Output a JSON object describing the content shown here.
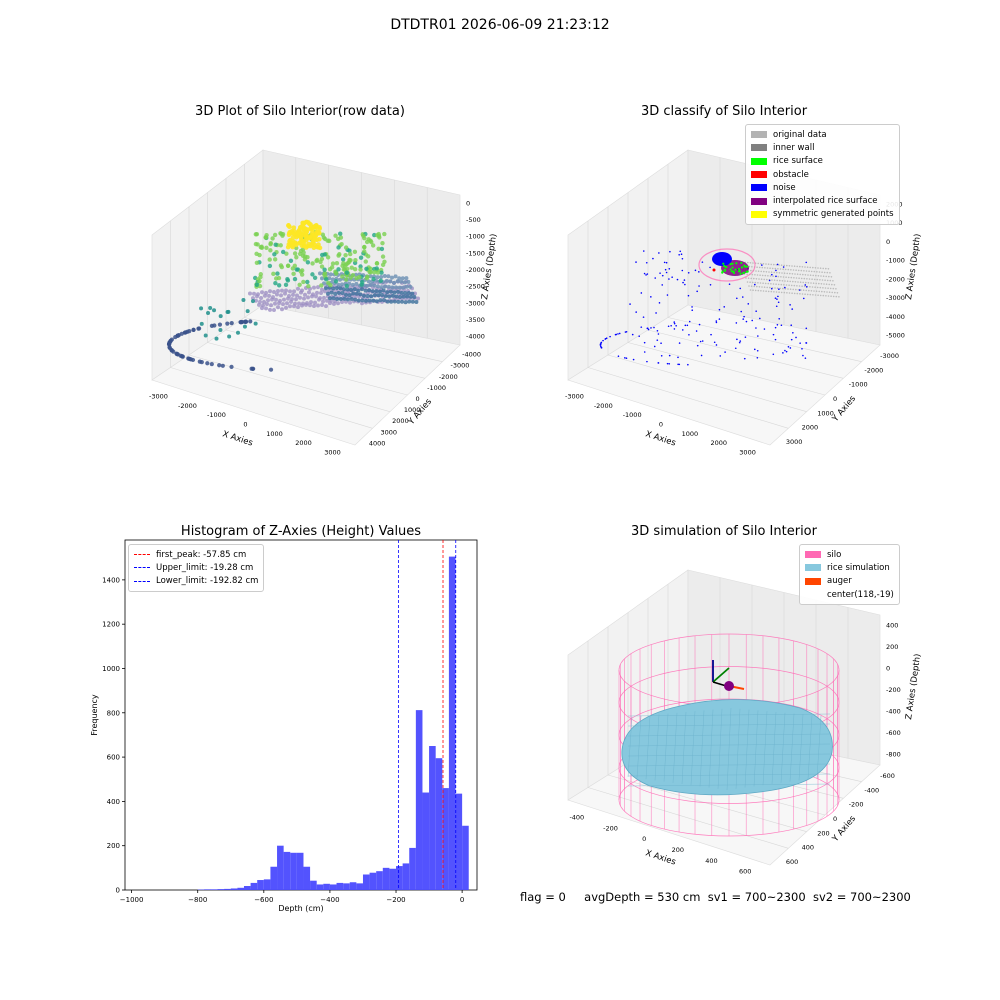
{
  "figure_title": "DTDTR01 2026-06-09 21:23:12",
  "footer": {
    "flag": "flag = 0",
    "avg_depth": "avgDepth = 530 cm",
    "sv1": "sv1 = 700~2300",
    "sv2": "sv2 = 700~2300"
  },
  "colors": {
    "hist_bar": "#4a4afe",
    "peak_line": "#ff0000",
    "limit_line": "#0000ff",
    "silo_wire": "#ff69b4",
    "rice": "#87c8de",
    "auger": "#ff4500"
  },
  "chart_data": [
    {
      "type": "scatter",
      "projection": "3d",
      "title": "3D Plot of Silo Interior(row data)",
      "xlabel": "X Axies",
      "ylabel": "Y Axies",
      "zlabel": "Z Axies (Depth)",
      "x_ticks": [
        "-3000",
        "-2000",
        "-1000",
        "0",
        "1000",
        "2000",
        "3000"
      ],
      "y_ticks": [
        "-4000",
        "-3000",
        "-2000",
        "-1000",
        "0",
        "1000",
        "2000",
        "3000",
        "4000"
      ],
      "z_ticks": [
        "0",
        "-500",
        "-1000",
        "-1500",
        "-2000",
        "-2500",
        "-3000",
        "-3500",
        "-4000"
      ],
      "colormap": "viridis"
    },
    {
      "type": "scatter",
      "projection": "3d",
      "title": "3D classify of Silo Interior",
      "xlabel": "X Axies",
      "ylabel": "Y Axies",
      "zlabel": "Z Axies (Depth)",
      "x_ticks": [
        "-3000",
        "-2000",
        "-1000",
        "0",
        "1000",
        "2000",
        "3000"
      ],
      "y_ticks": [
        "-3000",
        "-2000",
        "-1000",
        "0",
        "1000",
        "2000",
        "3000"
      ],
      "z_ticks": [
        "2000",
        "1000",
        "0",
        "-1000",
        "-2000",
        "-3000",
        "-4000",
        "-5000"
      ],
      "legend": [
        {
          "label": "original data",
          "color": "#b3b3b3"
        },
        {
          "label": "inner wall",
          "color": "#808080"
        },
        {
          "label": "rice surface",
          "color": "#00ff00"
        },
        {
          "label": "obstacle",
          "color": "#ff0000"
        },
        {
          "label": "noise",
          "color": "#0000ff"
        },
        {
          "label": "interpolated rice surface",
          "color": "#800080"
        },
        {
          "label": "symmetric generated points",
          "color": "#ffff00"
        }
      ]
    },
    {
      "type": "bar",
      "title": "Histogram of Z-Axies (Height) Values",
      "xlabel": "Depth (cm)",
      "ylabel": "Frequency",
      "xlim": [
        -1020,
        45
      ],
      "ylim": [
        0,
        1580
      ],
      "x_ticks": [
        -1000,
        -800,
        -600,
        -400,
        -200,
        0
      ],
      "y_ticks": [
        0,
        200,
        400,
        600,
        800,
        1000,
        1200,
        1400
      ],
      "bin_width": 20,
      "bins": [
        {
          "x": -800,
          "v": 2
        },
        {
          "x": -780,
          "v": 3
        },
        {
          "x": -760,
          "v": 3
        },
        {
          "x": -740,
          "v": 4
        },
        {
          "x": -720,
          "v": 5
        },
        {
          "x": -700,
          "v": 7
        },
        {
          "x": -680,
          "v": 10
        },
        {
          "x": -660,
          "v": 18
        },
        {
          "x": -640,
          "v": 32
        },
        {
          "x": -620,
          "v": 45
        },
        {
          "x": -600,
          "v": 48
        },
        {
          "x": -580,
          "v": 105
        },
        {
          "x": -560,
          "v": 200
        },
        {
          "x": -540,
          "v": 172
        },
        {
          "x": -520,
          "v": 168
        },
        {
          "x": -500,
          "v": 168
        },
        {
          "x": -480,
          "v": 105
        },
        {
          "x": -460,
          "v": 42
        },
        {
          "x": -440,
          "v": 25
        },
        {
          "x": -420,
          "v": 28
        },
        {
          "x": -400,
          "v": 25
        },
        {
          "x": -380,
          "v": 32
        },
        {
          "x": -360,
          "v": 30
        },
        {
          "x": -340,
          "v": 35
        },
        {
          "x": -320,
          "v": 30
        },
        {
          "x": -300,
          "v": 70
        },
        {
          "x": -280,
          "v": 78
        },
        {
          "x": -260,
          "v": 85
        },
        {
          "x": -240,
          "v": 100
        },
        {
          "x": -220,
          "v": 96
        },
        {
          "x": -200,
          "v": 108
        },
        {
          "x": -180,
          "v": 120
        },
        {
          "x": -160,
          "v": 190
        },
        {
          "x": -140,
          "v": 812
        },
        {
          "x": -120,
          "v": 440
        },
        {
          "x": -100,
          "v": 650
        },
        {
          "x": -80,
          "v": 595
        },
        {
          "x": -60,
          "v": 460
        },
        {
          "x": -40,
          "v": 1505
        },
        {
          "x": -20,
          "v": 435
        },
        {
          "x": 0,
          "v": 290
        }
      ],
      "vlines": [
        {
          "label": "first_peak: -57.85 cm",
          "x": -57.85,
          "color": "#ff0000"
        },
        {
          "label": "Upper_limit: -19.28 cm",
          "x": -19.28,
          "color": "#0000ff"
        },
        {
          "label": "Lower_limit: -192.82 cm",
          "x": -192.82,
          "color": "#0000ff"
        }
      ]
    },
    {
      "type": "surface",
      "projection": "3d",
      "title": "3D simulation of Silo Interior",
      "xlabel": "X Axies",
      "ylabel": "Y Axies",
      "zlabel": "Z Axies (Depth)",
      "x_ticks": [
        "-400",
        "-200",
        "0",
        "200",
        "400",
        "600"
      ],
      "y_ticks": [
        "-600",
        "-400",
        "-200",
        "0",
        "200",
        "400",
        "600"
      ],
      "z_ticks": [
        "400",
        "200",
        "0",
        "-200",
        "-400",
        "-600",
        "-800"
      ],
      "legend": [
        {
          "label": "silo",
          "color": "#ff69b4"
        },
        {
          "label": "rice simulation",
          "color": "#87c8de"
        },
        {
          "label": "auger",
          "color": "#ff4500"
        },
        {
          "label": "center(118,-19)",
          "color": ""
        }
      ]
    }
  ]
}
